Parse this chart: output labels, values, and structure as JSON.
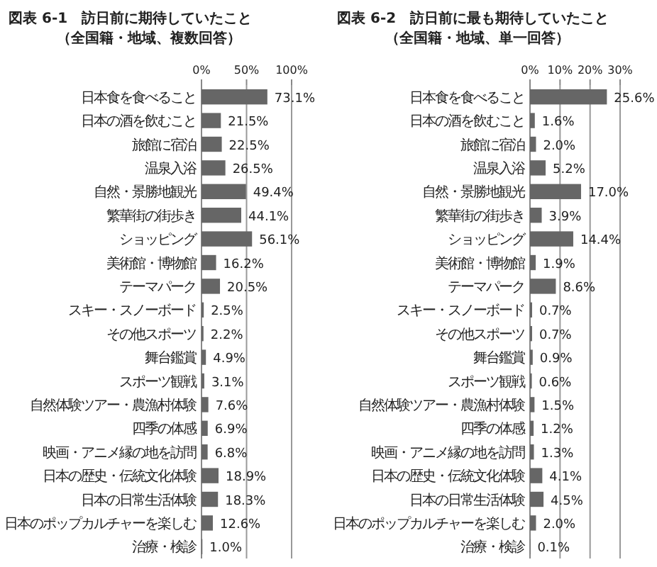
{
  "chart_data": [
    {
      "type": "bar",
      "orientation": "horizontal",
      "title": "図表 6-1　訪日前に期待していたこと",
      "subtitle": "（全国籍・地域、複数回答）",
      "categories": [
        "日本食を食べること",
        "日本の酒を飲むこと",
        "旅館に宿泊",
        "温泉入浴",
        "自然・景勝地観光",
        "繁華街の街歩き",
        "ショッピング",
        "美術館・博物館",
        "テーマパーク",
        "スキー・スノーボード",
        "その他スポーツ",
        "舞台鑑賞",
        "スポーツ観戦",
        "自然体験ツアー・農漁村体験",
        "四季の体感",
        "映画・アニメ縁の地を訪問",
        "日本の歴史・伝統文化体験",
        "日本の日常生活体験",
        "日本のポップカルチャーを楽しむ",
        "治療・検診"
      ],
      "values": [
        73.1,
        21.5,
        22.5,
        26.5,
        49.4,
        44.1,
        56.1,
        16.2,
        20.5,
        2.5,
        2.2,
        4.9,
        3.1,
        7.6,
        6.9,
        6.8,
        18.9,
        18.3,
        12.6,
        1.0
      ],
      "value_labels": [
        "73.1%",
        "21.5%",
        "22.5%",
        "26.5%",
        "49.4%",
        "44.1%",
        "56.1%",
        "16.2%",
        "20.5%",
        "2.5%",
        "2.2%",
        "4.9%",
        "3.1%",
        "7.6%",
        "6.9%",
        "6.8%",
        "18.9%",
        "18.3%",
        "12.6%",
        "1.0%"
      ],
      "color": "#666666",
      "xlim": [
        0,
        100
      ],
      "xticks": [
        {
          "value": 0,
          "label": "0%"
        },
        {
          "value": 50,
          "label": "50%"
        },
        {
          "value": 100,
          "label": "100%"
        }
      ],
      "grid": "x"
    },
    {
      "type": "bar",
      "orientation": "horizontal",
      "title": "図表 6-2　訪日前に最も期待していたこと",
      "subtitle": "（全国籍・地域、単一回答）",
      "categories": [
        "日本食を食べること",
        "日本の酒を飲むこと",
        "旅館に宿泊",
        "温泉入浴",
        "自然・景勝地観光",
        "繁華街の街歩き",
        "ショッピング",
        "美術館・博物館",
        "テーマパーク",
        "スキー・スノーボード",
        "その他スポーツ",
        "舞台鑑賞",
        "スポーツ観戦",
        "自然体験ツアー・農漁村体験",
        "四季の体感",
        "映画・アニメ縁の地を訪問",
        "日本の歴史・伝統文化体験",
        "日本の日常生活体験",
        "日本のポップカルチャーを楽しむ",
        "治療・検診"
      ],
      "values": [
        25.6,
        1.6,
        2.0,
        5.2,
        17.0,
        3.9,
        14.4,
        1.9,
        8.6,
        0.7,
        0.7,
        0.9,
        0.6,
        1.5,
        1.2,
        1.3,
        4.1,
        4.5,
        2.0,
        0.1
      ],
      "value_labels": [
        "25.6%",
        "1.6%",
        "2.0%",
        "5.2%",
        "17.0%",
        "3.9%",
        "14.4%",
        "1.9%",
        "8.6%",
        "0.7%",
        "0.7%",
        "0.9%",
        "0.6%",
        "1.5%",
        "1.2%",
        "1.3%",
        "4.1%",
        "4.5%",
        "2.0%",
        "0.1%"
      ],
      "color": "#666666",
      "xlim": [
        0,
        30
      ],
      "xticks": [
        {
          "value": 0,
          "label": "0%"
        },
        {
          "value": 10,
          "label": "10%"
        },
        {
          "value": 20,
          "label": "20%"
        },
        {
          "value": 30,
          "label": "30%"
        }
      ],
      "grid": "x"
    }
  ]
}
